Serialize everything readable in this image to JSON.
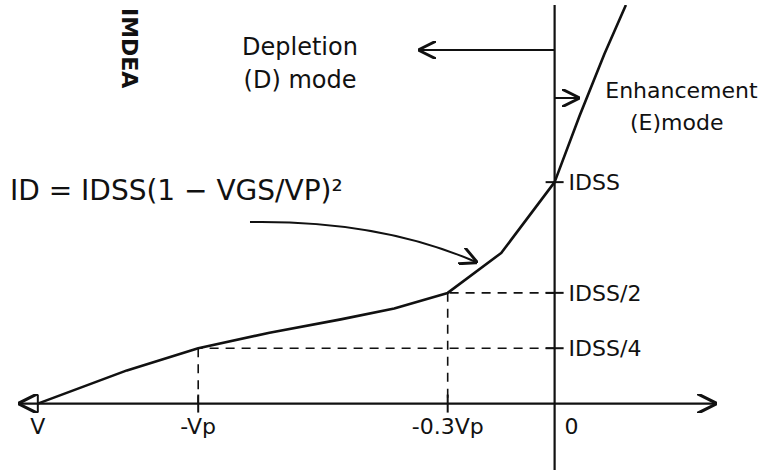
{
  "chart_data": {
    "type": "line",
    "x": [
      -1.45,
      -1.2,
      -1,
      -0.8,
      -0.6,
      -0.45,
      -0.3,
      -0.15,
      0,
      0.07,
      0.14,
      0.2
    ],
    "values": [
      0,
      0.15,
      0.25,
      0.32,
      0.38,
      0.43,
      0.5,
      0.68,
      1.0,
      1.3,
      1.58,
      1.8
    ],
    "color": "#111111",
    "xlim": [
      -1.5,
      0.45
    ],
    "ylim": [
      -0.3,
      1.8
    ],
    "xticks": [
      {
        "value": -1.45,
        "label": "V"
      },
      {
        "value": -1,
        "label": "-Vp"
      },
      {
        "value": -0.3,
        "label": "-0.3Vp"
      },
      0
    ],
    "yticks": [
      {
        "value": 0.25,
        "label": "IDSS/4"
      },
      {
        "value": 0.5,
        "label": "IDSS/2"
      },
      {
        "value": 1,
        "label": "IDSS"
      }
    ],
    "grid": false,
    "annotations": [
      "IMDEA",
      "Depletion",
      "(D) mode",
      "Enhancement",
      "(E)mode",
      "ID = IDSS(1 − VGS/VP)²"
    ]
  }
}
